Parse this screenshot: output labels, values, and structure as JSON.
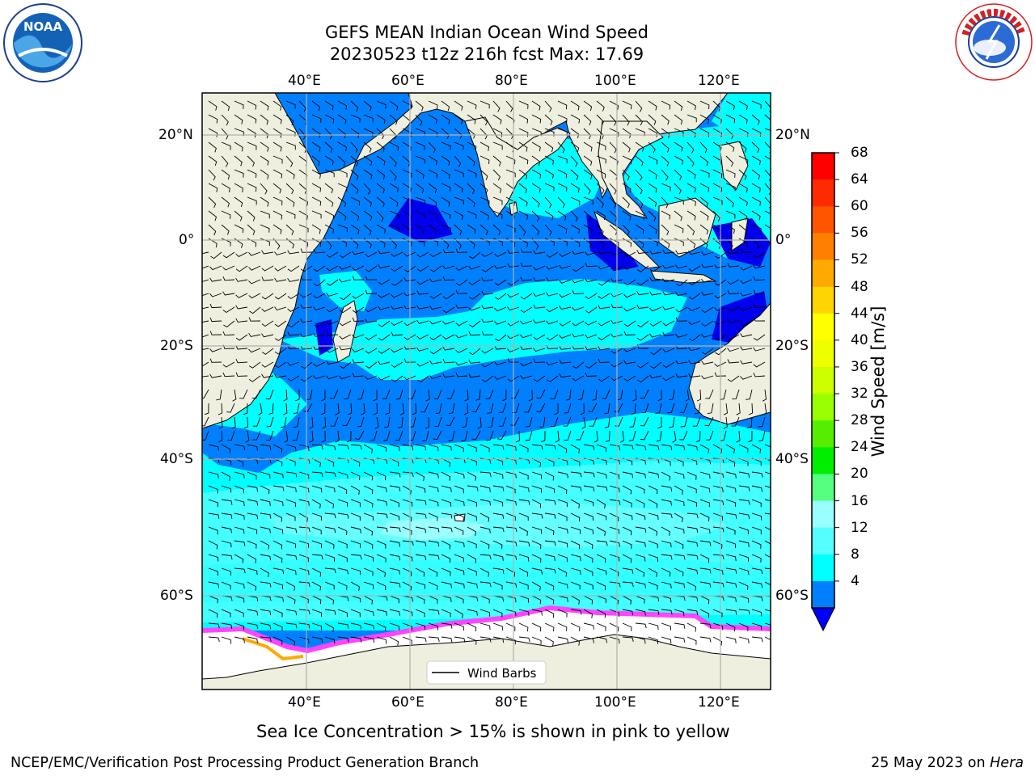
{
  "title": {
    "line1": "GEFS MEAN Indian Ocean Wind Speed",
    "line2": "20230523 t12z 216h fcst   Max: 17.69"
  },
  "logos": {
    "noaa_text": "NOAA",
    "noaa_ring": "NATIONAL OCEANIC AND ATMOSPHERIC ADMINISTRATION · U.S. DEPARTMENT OF COMMERCE",
    "nws_ring": "NATIONAL WEATHER SERVICE"
  },
  "map": {
    "lon_labels": [
      "40°E",
      "60°E",
      "80°E",
      "100°E",
      "120°E"
    ],
    "lat_labels": [
      "20°N",
      "0°",
      "20°S",
      "40°S",
      "60°S"
    ],
    "legend_label": "Wind Barbs",
    "colors": {
      "land": "#efefdf",
      "ocean_fill_8_12": "#00ffff",
      "ocean_fill_4_8": "#0080ff",
      "ocean_fill_lt4": "#0000ef",
      "ocean_fill_12_16": "#44ffff",
      "ocean_fill_16_20": "#99ffff",
      "ice": "#ff44ff",
      "gridline": "#b0b0b0"
    }
  },
  "colorbar": {
    "label": "Wind Speed [m/s]",
    "ticks": [
      "68",
      "64",
      "60",
      "56",
      "52",
      "48",
      "44",
      "40",
      "36",
      "32",
      "28",
      "24",
      "20",
      "16",
      "12",
      "8",
      "4"
    ],
    "colors": [
      "#ff0000",
      "#ff2a00",
      "#ff5500",
      "#ff8000",
      "#ffaa00",
      "#ffd400",
      "#ffff00",
      "#eeff00",
      "#ccff00",
      "#99ff00",
      "#55ee00",
      "#00ee00",
      "#55ff80",
      "#99ffff",
      "#55ffff",
      "#00ffff",
      "#0080ff"
    ],
    "under_color": "#0000ff"
  },
  "caption": "Sea Ice Concentration > 15% is shown in pink to yellow",
  "footer": {
    "left": "NCEP/EMC/Verification Post Processing Product Generation Branch",
    "right_date": "25 May 2023 on ",
    "right_machine": "Hera"
  }
}
